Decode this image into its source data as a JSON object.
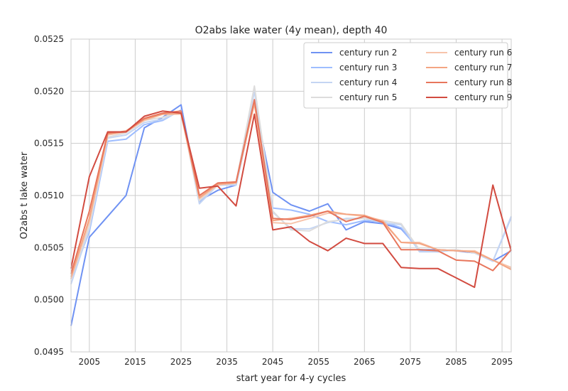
{
  "chart_data": {
    "type": "line",
    "title": "O2abs lake water (4y mean), depth 40",
    "xlabel": "start year for 4-y cycles",
    "ylabel": "O2abs t lake water",
    "xlim": [
      2001,
      2097
    ],
    "ylim": [
      0.0495,
      0.0525
    ],
    "xticks": [
      2005,
      2015,
      2025,
      2035,
      2045,
      2055,
      2065,
      2075,
      2085,
      2095
    ],
    "xtick_labels": [
      "2005",
      "2015",
      "2025",
      "2035",
      "2045",
      "2055",
      "2065",
      "2075",
      "2085",
      "2095"
    ],
    "yticks": [
      0.0495,
      0.05,
      0.0505,
      0.051,
      0.0515,
      0.052,
      0.0525
    ],
    "ytick_labels": [
      "0.0495",
      "0.0500",
      "0.0505",
      "0.0510",
      "0.0515",
      "0.0520",
      "0.0525"
    ],
    "grid": true,
    "legend_position": "top-right",
    "x": [
      2001,
      2005,
      2009,
      2013,
      2017,
      2021,
      2025,
      2029,
      2033,
      2037,
      2041,
      2045,
      2049,
      2053,
      2057,
      2061,
      2065,
      2069,
      2073,
      2077,
      2081,
      2085,
      2089,
      2093,
      2097
    ],
    "series": [
      {
        "name": "century run 2",
        "color": "#6f92f3",
        "values": [
          0.04975,
          0.0506,
          0.0508,
          0.051,
          0.05165,
          0.05175,
          0.05187,
          0.05095,
          0.05105,
          0.0511,
          0.0519,
          0.05103,
          0.05091,
          0.05085,
          0.05092,
          0.05067,
          0.05075,
          0.05073,
          0.05068,
          0.05048,
          0.05048,
          0.05047,
          0.05045,
          0.05037,
          0.05047
        ]
      },
      {
        "name": "century run 3",
        "color": "#9ebdff",
        "values": [
          0.0502,
          0.05065,
          0.05152,
          0.05154,
          0.05168,
          0.05172,
          0.05182,
          0.05093,
          0.0511,
          0.0511,
          0.0519,
          0.05088,
          0.05086,
          0.05082,
          0.05075,
          0.05072,
          0.05076,
          0.05075,
          0.05069,
          0.05047,
          0.05046,
          0.05048,
          0.05045,
          0.05037,
          0.05079
        ]
      },
      {
        "name": "century run 4",
        "color": "#c4d5f3",
        "values": [
          0.05015,
          0.05068,
          0.05155,
          0.05158,
          0.0517,
          0.05173,
          0.05181,
          0.05092,
          0.0511,
          0.0511,
          0.052,
          0.05084,
          0.05068,
          0.05068,
          0.05074,
          0.05078,
          0.05078,
          0.05074,
          0.05072,
          0.05046,
          0.05046,
          0.05048,
          0.05045,
          0.05037,
          0.0508
        ]
      },
      {
        "name": "century run 5",
        "color": "#dddcdc",
        "values": [
          0.0502,
          0.0507,
          0.05156,
          0.0516,
          0.05172,
          0.05175,
          0.0518,
          0.05095,
          0.0511,
          0.05112,
          0.05205,
          0.05085,
          0.05067,
          0.05066,
          0.05075,
          0.05077,
          0.05078,
          0.05076,
          0.05073,
          0.05048,
          0.05047,
          0.05048,
          0.05045,
          0.05038,
          0.0503
        ]
      },
      {
        "name": "century run 6",
        "color": "#f7c4ab",
        "values": [
          0.0502,
          0.05075,
          0.05158,
          0.05161,
          0.05172,
          0.05178,
          0.05178,
          0.05097,
          0.0511,
          0.05112,
          0.05188,
          0.05074,
          0.05073,
          0.05078,
          0.05083,
          0.05082,
          0.0508,
          0.05076,
          0.05055,
          0.05055,
          0.05048,
          0.05047,
          0.05047,
          0.05038,
          0.05031
        ]
      },
      {
        "name": "century run 7",
        "color": "#f4a582",
        "values": [
          0.05022,
          0.05078,
          0.05159,
          0.05162,
          0.05173,
          0.05178,
          0.05179,
          0.05098,
          0.05111,
          0.05112,
          0.05189,
          0.05076,
          0.05078,
          0.05081,
          0.05085,
          0.05082,
          0.05081,
          0.05075,
          0.05055,
          0.05054,
          0.05048,
          0.05047,
          0.05046,
          0.05038,
          0.05029
        ]
      },
      {
        "name": "century run 8",
        "color": "#e8765c",
        "values": [
          0.05025,
          0.05085,
          0.0516,
          0.05161,
          0.05174,
          0.05179,
          0.05181,
          0.051,
          0.05112,
          0.05113,
          0.05192,
          0.05078,
          0.05077,
          0.0508,
          0.05085,
          0.05075,
          0.0508,
          0.05074,
          0.05048,
          0.05048,
          0.05047,
          0.05038,
          0.05037,
          0.05028,
          0.05048
        ]
      },
      {
        "name": "century run 9",
        "color": "#d24b40",
        "values": [
          0.0503,
          0.05118,
          0.05161,
          0.05161,
          0.05176,
          0.05181,
          0.05179,
          0.05107,
          0.05109,
          0.0509,
          0.05178,
          0.05067,
          0.0507,
          0.05056,
          0.05047,
          0.05059,
          0.05054,
          0.05054,
          0.05031,
          0.0503,
          0.0503,
          0.05021,
          0.05012,
          0.0511,
          0.05047
        ]
      }
    ]
  }
}
